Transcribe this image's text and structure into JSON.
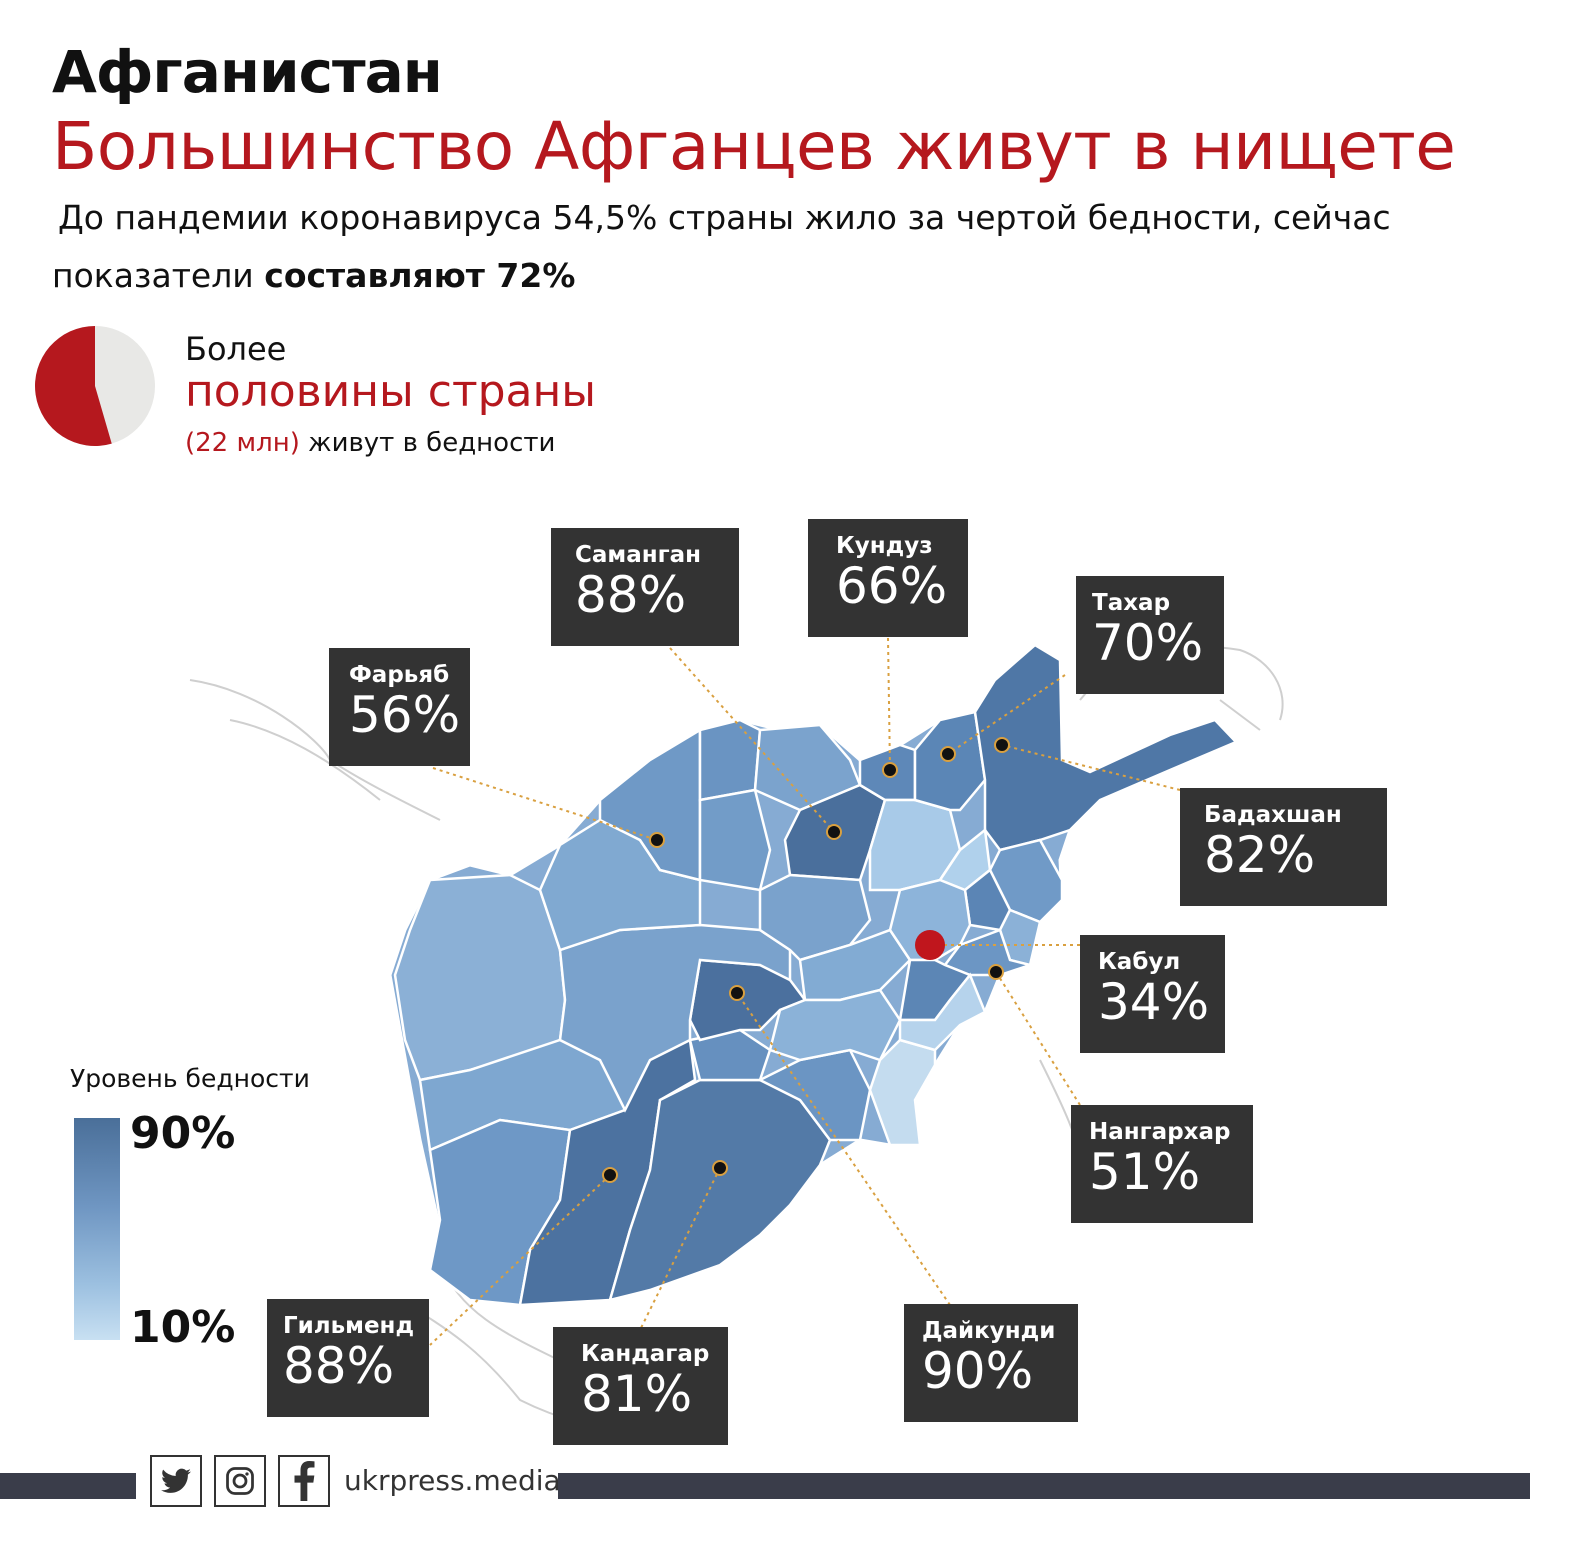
{
  "header": {
    "country": "Афганистан",
    "headline": "Большинство Афганцев живут в нищете",
    "subtitle_line1": "До пандемии коронавируса 54,5% страны жило за чертой бедности, сейчас",
    "subtitle_line2_plain": "показатели",
    "subtitle_line2_bold": "составляют 72%"
  },
  "summary": {
    "pie_share_percent": 54.5,
    "more": "Более",
    "half": "половины страны",
    "count": "(22 млн)",
    "count_suffix": "живут в бедности",
    "colors": {
      "accent": "#b5181e",
      "rest": "#e8e8e6"
    }
  },
  "provinces": [
    {
      "name": "Саманган",
      "value": "88%"
    },
    {
      "name": "Кундуз",
      "value": "66%"
    },
    {
      "name": "Тахар",
      "value": "70%"
    },
    {
      "name": "Фарьяб",
      "value": "56%"
    },
    {
      "name": "Бадахшан",
      "value": "82%"
    },
    {
      "name": "Кабул",
      "value": "34%"
    },
    {
      "name": "Нангархар",
      "value": "51%"
    },
    {
      "name": "Гильменд",
      "value": "88%"
    },
    {
      "name": "Кандагар",
      "value": "81%"
    },
    {
      "name": "Дайкунди",
      "value": "90%"
    }
  ],
  "legend": {
    "title": "Уровень бедности",
    "max": "90%",
    "min": "10%",
    "colors": {
      "high": "#4a6f99",
      "low": "#c8e0f2"
    }
  },
  "footer": {
    "site": "ukrpress.media",
    "icons": [
      "twitter-icon",
      "instagram-icon",
      "facebook-icon"
    ]
  }
}
